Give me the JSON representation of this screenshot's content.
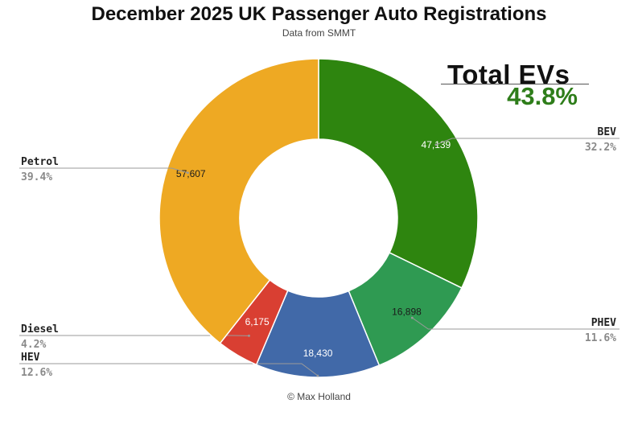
{
  "header": {
    "title": "December 2025 UK Passenger Auto Registrations",
    "subtitle": "Data from SMMT"
  },
  "total_evs": {
    "label": "Total EVs",
    "value": "43.8%"
  },
  "footer": {
    "credit": "© Max Holland"
  },
  "chart_data": {
    "type": "pie",
    "donut": true,
    "title": "December 2025 UK Passenger Auto Registrations",
    "subtitle": "Data from SMMT",
    "slices": [
      {
        "name": "BEV",
        "value": 47139,
        "value_label": "47,139",
        "percent_label": "32.2%",
        "color": "#2e850f",
        "text_color": "#ffffff"
      },
      {
        "name": "PHEV",
        "value": 16898,
        "value_label": "16,898",
        "percent_label": "11.6%",
        "color": "#2f9a52",
        "text_color": "#1a1a1a"
      },
      {
        "name": "HEV",
        "value": 18430,
        "value_label": "18,430",
        "percent_label": "12.6%",
        "color": "#4169a8",
        "text_color": "#ffffff"
      },
      {
        "name": "Diesel",
        "value": 6175,
        "value_label": "6,175",
        "percent_label": "4.2%",
        "color": "#d93f32",
        "text_color": "#ffffff"
      },
      {
        "name": "Petrol",
        "value": 57607,
        "value_label": "57,607",
        "percent_label": "39.4%",
        "color": "#eea923",
        "text_color": "#1a1a1a"
      }
    ]
  }
}
